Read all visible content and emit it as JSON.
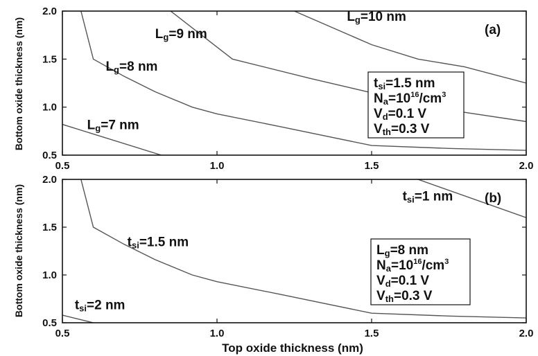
{
  "chart_data": [
    {
      "panel_label": "(a)",
      "type": "line",
      "xlim": [
        0.5,
        2.0
      ],
      "ylim": [
        0.5,
        2.0
      ],
      "x_ticks": [
        "0.5",
        "1.0",
        "1.5",
        "2.0"
      ],
      "y_ticks": [
        "0.5",
        "1.0",
        "1.5",
        "2.0"
      ],
      "ylabel": "Bottom oxide thickness (nm)",
      "xlabel": "",
      "legend_box": [
        {
          "base": "t",
          "sub": "si",
          "rest": "=1.5 nm"
        },
        {
          "base": "N",
          "sub": "a",
          "rest": "=10",
          "sup": "16",
          "after": "/cm",
          "sup2": "3"
        },
        {
          "base": "V",
          "sub": "d",
          "rest": "=0.1 V"
        },
        {
          "base": "V",
          "sub": "th",
          "rest": "=0.3 V"
        }
      ],
      "series": [
        {
          "label": {
            "base": "L",
            "sub": "g",
            "rest": "=7 nm"
          },
          "points": [
            [
              0.5,
              0.82
            ],
            [
              0.82,
              0.5
            ]
          ],
          "label_at": [
            0.58,
            0.77
          ]
        },
        {
          "label": {
            "base": "L",
            "sub": "g",
            "rest": "=8 nm"
          },
          "points": [
            [
              0.56,
              2.0
            ],
            [
              0.6,
              1.5
            ],
            [
              0.7,
              1.32
            ],
            [
              0.8,
              1.16
            ],
            [
              0.92,
              1.0
            ],
            [
              1.0,
              0.93
            ],
            [
              1.2,
              0.8
            ],
            [
              1.5,
              0.6
            ],
            [
              1.75,
              0.57
            ],
            [
              2.0,
              0.55
            ]
          ],
          "label_at": [
            0.64,
            1.38
          ]
        },
        {
          "label": {
            "base": "L",
            "sub": "g",
            "rest": "=9 nm"
          },
          "points": [
            [
              0.85,
              2.0
            ],
            [
              1.05,
              1.5
            ],
            [
              1.3,
              1.3
            ],
            [
              1.5,
              1.15
            ],
            [
              1.75,
              0.97
            ],
            [
              2.0,
              0.85
            ]
          ],
          "label_at": [
            0.8,
            1.72
          ]
        },
        {
          "label": {
            "base": "L",
            "sub": "g",
            "rest": "=10 nm"
          },
          "points": [
            [
              1.25,
              2.0
            ],
            [
              1.5,
              1.65
            ],
            [
              1.65,
              1.5
            ],
            [
              1.8,
              1.42
            ],
            [
              2.0,
              1.25
            ]
          ],
          "label_at": [
            1.42,
            1.9
          ]
        }
      ]
    },
    {
      "panel_label": "(b)",
      "type": "line",
      "xlim": [
        0.5,
        2.0
      ],
      "ylim": [
        0.5,
        2.0
      ],
      "x_ticks": [
        "0.5",
        "1.0",
        "1.5",
        "2.0"
      ],
      "y_ticks": [
        "0.5",
        "1.0",
        "1.5",
        "2.0"
      ],
      "ylabel": "Bottom oxide thickness (nm)",
      "xlabel": "Top oxide thickness (nm)",
      "legend_box": [
        {
          "base": "L",
          "sub": "g",
          "rest": "=8 nm"
        },
        {
          "base": "N",
          "sub": "a",
          "rest": "=10",
          "sup": "16",
          "after": "/cm",
          "sup2": "3"
        },
        {
          "base": "V",
          "sub": "d",
          "rest": "=0.1 V"
        },
        {
          "base": "V",
          "sub": "th",
          "rest": "=0.3 V"
        }
      ],
      "series": [
        {
          "label": {
            "base": "t",
            "sub": "si",
            "rest": "=1 nm"
          },
          "points": [
            [
              1.65,
              2.0
            ],
            [
              2.0,
              1.6
            ]
          ],
          "label_at": [
            1.6,
            1.78
          ]
        },
        {
          "label": {
            "base": "t",
            "sub": "si",
            "rest": "=1.5 nm"
          },
          "points": [
            [
              0.56,
              2.0
            ],
            [
              0.6,
              1.5
            ],
            [
              0.7,
              1.32
            ],
            [
              0.8,
              1.16
            ],
            [
              0.92,
              1.0
            ],
            [
              1.0,
              0.93
            ],
            [
              1.2,
              0.8
            ],
            [
              1.5,
              0.6
            ],
            [
              1.75,
              0.57
            ],
            [
              2.0,
              0.55
            ]
          ],
          "label_at": [
            0.71,
            1.3
          ]
        },
        {
          "label": {
            "base": "t",
            "sub": "si",
            "rest": "=2 nm"
          },
          "points": [
            [
              0.5,
              0.58
            ],
            [
              0.6,
              0.5
            ]
          ],
          "label_at": [
            0.54,
            0.64
          ]
        }
      ]
    }
  ]
}
